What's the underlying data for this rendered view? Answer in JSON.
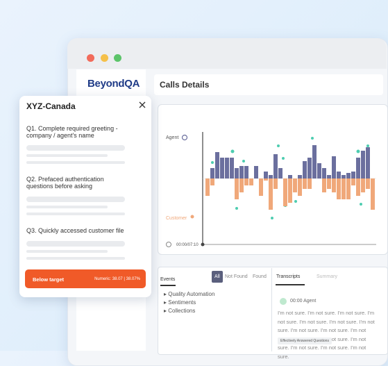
{
  "app": {
    "logo": "BeyondQA",
    "page_title": "Calls Details"
  },
  "call_chart": {
    "agent_label": "Agent",
    "customer_label": "Customer",
    "time": "00:00/07:10",
    "agent_bars": [
      null,
      15,
      38,
      30,
      30,
      30,
      15,
      18,
      18,
      null,
      18,
      null,
      10,
      5,
      35,
      15,
      null,
      5,
      null,
      5,
      25,
      30,
      48,
      22,
      15,
      5,
      32,
      10,
      5,
      8,
      10,
      30,
      40,
      45,
      null
    ],
    "customer_bars": [
      25,
      10,
      null,
      null,
      null,
      null,
      30,
      20,
      10,
      10,
      null,
      25,
      3,
      45,
      15,
      null,
      40,
      35,
      20,
      25,
      15,
      15,
      null,
      null,
      20,
      15,
      20,
      30,
      30,
      30,
      10,
      25,
      20,
      15,
      45
    ]
  },
  "events": {
    "title": "Events",
    "tabs": [
      "All",
      "Not Found",
      "Found"
    ],
    "items": [
      "Quality Automation",
      "Sentiments",
      "Collections"
    ]
  },
  "transcripts": {
    "tabs": [
      "Transcripts",
      "Summary"
    ],
    "speaker": "00:00 Agent",
    "text": "I'm not sure. I'm not sure. I'm not sure. I'm not sure. I'm not sure. I'm not sure. I'm not sure. I'm not sure. I'm not sure. I'm not sure. I'm not sure. I'm not sure. I'm not sure. I'm not sure. I'm not sure. I'm not sure.",
    "tag": "Effectively Answered Questions"
  },
  "popup": {
    "title": "XYZ-Canada",
    "questions": [
      "Q1. Complete required greeting - company / agent's name",
      "Q2.  Prefaced authentication questions before asking",
      "Q3.  Quickly accessed customer file"
    ],
    "status": "Below target",
    "score": "Numeric: 38.07 | 38.07%"
  }
}
